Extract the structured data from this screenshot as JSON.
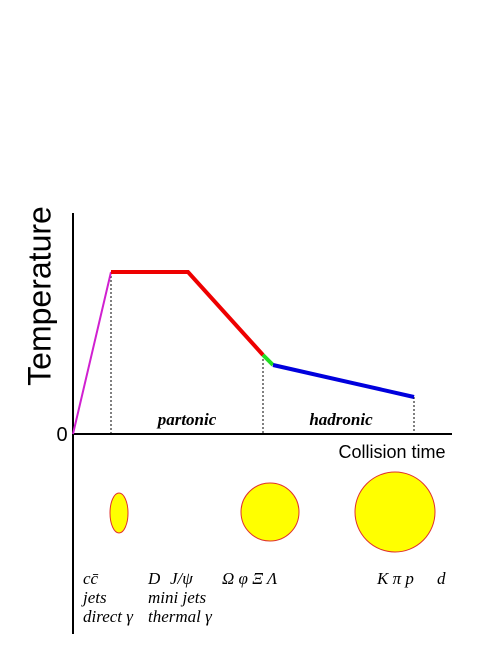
{
  "axes": {
    "y_label": "Temperature",
    "origin": "0",
    "x_label": "Collision time"
  },
  "phases": [
    "partonic",
    "hadronic"
  ],
  "probes": {
    "row1": [
      "cc̄",
      "D",
      "J/ψ",
      "Ω φ Ξ Λ",
      "K π p",
      "d"
    ],
    "row2": [
      "jets",
      "mini jets"
    ],
    "row3": [
      "direct γ",
      "thermal γ"
    ]
  }
}
